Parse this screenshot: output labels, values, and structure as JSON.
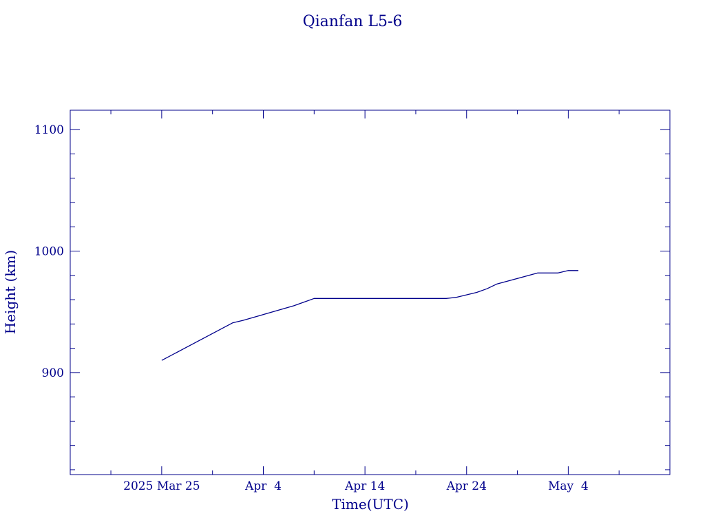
{
  "colors": {
    "ink": "#00008b",
    "background": "#ffffff"
  },
  "chart_data": {
    "type": "line",
    "title": "Qianfan L5-6",
    "xlabel": "Time(UTC)",
    "ylabel": "Height (km)",
    "x_tick_labels": [
      {
        "date": "2025-03-25",
        "label": "2025 Mar 25"
      },
      {
        "date": "2025-04-04",
        "label": "Apr  4"
      },
      {
        "date": "2025-04-14",
        "label": "Apr 14"
      },
      {
        "date": "2025-04-24",
        "label": "Apr 24"
      },
      {
        "date": "2025-05-04",
        "label": "May  4"
      }
    ],
    "x_minor_tick_dates": [
      "2025-03-20",
      "2025-03-30",
      "2025-04-09",
      "2025-04-19",
      "2025-04-29",
      "2025-05-09"
    ],
    "y_tick_labels": [
      900,
      1000,
      1100
    ],
    "y_minor_tick_step": 20,
    "xlim": [
      "2025-03-16",
      "2025-05-14"
    ],
    "ylim": [
      816,
      1116
    ],
    "grid": false,
    "series": [
      {
        "x": [
          "2025-03-25",
          "2025-04-01",
          "2025-04-02",
          "2025-04-07",
          "2025-04-08",
          "2025-04-09",
          "2025-04-22",
          "2025-04-23",
          "2025-04-25",
          "2025-04-26",
          "2025-04-27",
          "2025-05-01",
          "2025-05-03",
          "2025-05-04",
          "2025-05-05"
        ],
        "y": [
          910,
          941,
          943,
          955,
          958,
          961,
          961,
          962,
          966,
          969,
          973,
          982,
          982,
          984,
          984
        ]
      }
    ]
  }
}
